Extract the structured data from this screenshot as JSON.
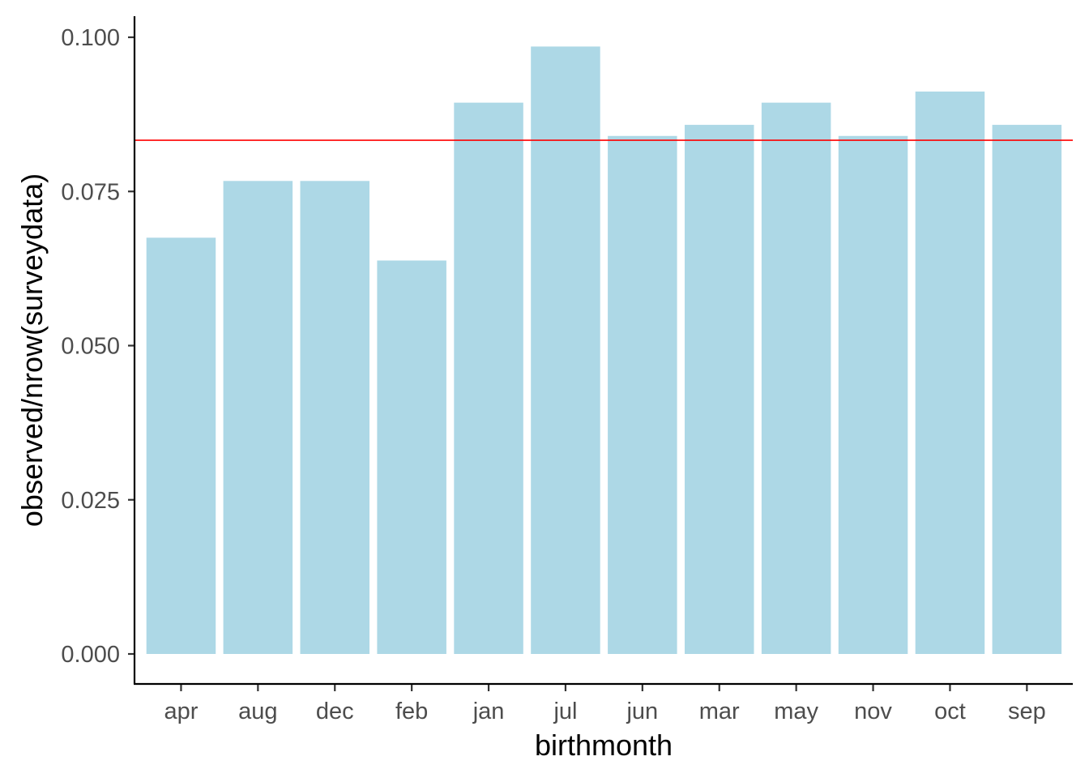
{
  "chart_data": {
    "type": "bar",
    "title": "",
    "xlabel": "birthmonth",
    "ylabel": "observed/nrow(surveydata)",
    "categories": [
      "apr",
      "aug",
      "dec",
      "feb",
      "jan",
      "jul",
      "jun",
      "mar",
      "may",
      "nov",
      "oct",
      "sep"
    ],
    "values": [
      0.0675,
      0.0767,
      0.0767,
      0.0638,
      0.0894,
      0.0985,
      0.084,
      0.0858,
      0.0894,
      0.084,
      0.0912,
      0.0858
    ],
    "ylim": [
      0,
      0.1
    ],
    "yticks": [
      "0.000",
      "0.025",
      "0.050",
      "0.075",
      "0.100"
    ],
    "reference_line": {
      "y": 0.0833,
      "color": "#ff0000"
    },
    "bar_color": "#add8e6",
    "grid": false,
    "legend": "none"
  }
}
